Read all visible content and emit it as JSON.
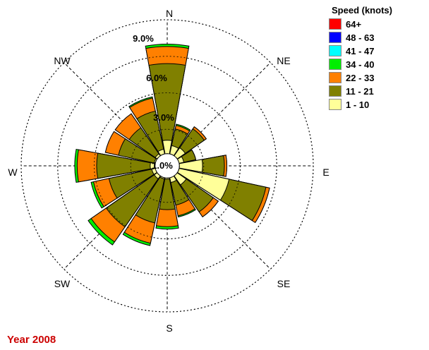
{
  "legend_title": "Speed (knots)",
  "footer": "Year 2008",
  "chart_data": {
    "type": "wind-rose",
    "units": "%",
    "direction_labels": [
      "N",
      "NE",
      "E",
      "SE",
      "S",
      "SW",
      "W",
      "NW"
    ],
    "ring_labels": [
      "1.0%",
      "3.0%",
      "6.0%",
      "9.0%"
    ],
    "rings": [
      1.0,
      3.0,
      6.0,
      9.0,
      12.0
    ],
    "rmax": 12.0,
    "calm_pct": 1.0,
    "grid": true,
    "legend_position": "top-right",
    "speed_bins": [
      {
        "label": "64+",
        "color": "#ff0000"
      },
      {
        "label": "48 - 63",
        "color": "#0000ff"
      },
      {
        "label": "41 - 47",
        "color": "#00ffff"
      },
      {
        "label": "34 - 40",
        "color": "#00ee00"
      },
      {
        "label": "22 - 33",
        "color": "#ff8000"
      },
      {
        "label": "11 - 21",
        "color": "#808000"
      },
      {
        "label": "1 - 10",
        "color": "#ffff99"
      }
    ],
    "sectors": [
      {
        "dir": 0,
        "cum": [
          2.1,
          8.4,
          9.8,
          10.0
        ]
      },
      {
        "dir": 22.5,
        "cum": [
          1.7,
          3.1,
          3.4,
          3.5
        ]
      },
      {
        "dir": 45,
        "cum": [
          1.8,
          3.7,
          3.9,
          3.9
        ]
      },
      {
        "dir": 67.5,
        "cum": [
          1.4,
          2.4,
          2.4,
          2.4
        ]
      },
      {
        "dir": 90,
        "cum": [
          2.9,
          4.7,
          4.9,
          4.9
        ]
      },
      {
        "dir": 112.5,
        "cum": [
          5.2,
          8.3,
          8.6,
          8.6
        ]
      },
      {
        "dir": 135,
        "cum": [
          1.9,
          4.6,
          5.1,
          5.1
        ]
      },
      {
        "dir": 157.5,
        "cum": [
          1.4,
          3.3,
          4.2,
          4.3
        ]
      },
      {
        "dir": 180,
        "cum": [
          1.1,
          3.6,
          5.0,
          5.2
        ]
      },
      {
        "dir": 202.5,
        "cum": [
          1.1,
          4.8,
          6.5,
          6.7
        ]
      },
      {
        "dir": 225,
        "cum": [
          1.3,
          6.1,
          7.6,
          7.9
        ]
      },
      {
        "dir": 247.5,
        "cum": [
          1.3,
          4.9,
          6.2,
          6.4
        ]
      },
      {
        "dir": 270,
        "cum": [
          1.4,
          5.8,
          7.4,
          7.6
        ]
      },
      {
        "dir": 292.5,
        "cum": [
          1.1,
          4.1,
          5.2,
          5.2
        ]
      },
      {
        "dir": 315,
        "cum": [
          1.2,
          3.8,
          5.2,
          5.2
        ]
      },
      {
        "dir": 337.5,
        "cum": [
          1.4,
          4.6,
          5.7,
          5.8
        ]
      }
    ]
  }
}
